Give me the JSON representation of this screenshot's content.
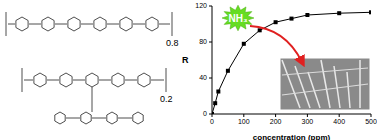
{
  "chart_data": {
    "type": "line",
    "x_label": "concentration (ppm)",
    "y_label": "R",
    "x": [
      0,
      10,
      20,
      50,
      100,
      150,
      200,
      250,
      300,
      400,
      500
    ],
    "values": [
      0,
      12,
      25,
      48,
      78,
      93,
      102,
      106,
      110,
      112,
      113
    ],
    "color": "#000000",
    "marker": "square",
    "xlim": [
      0,
      500
    ],
    "xticks": [
      0,
      100,
      200,
      300,
      400,
      500
    ],
    "ylim": [
      0,
      120
    ],
    "yticks": [
      0,
      40,
      80,
      120
    ],
    "grid": false,
    "annotations": [
      "NH₃"
    ]
  },
  "structure": {
    "subscripts": [
      "0.8",
      "0.2"
    ]
  }
}
